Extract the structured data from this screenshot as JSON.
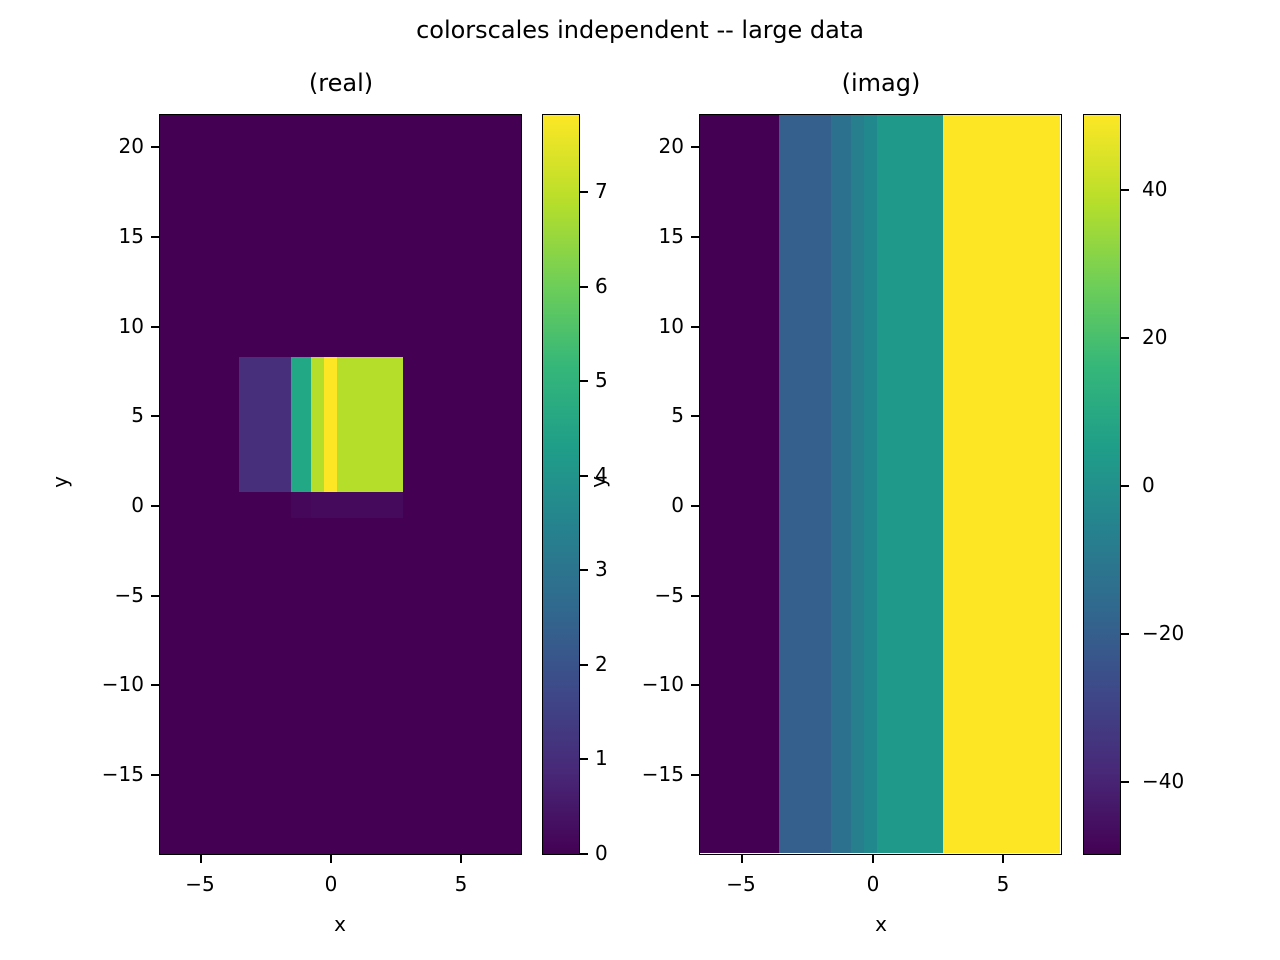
{
  "figure": {
    "title": "colorscales independent -- large data"
  },
  "colors": {
    "viridis_stops": [
      "#440154",
      "#482878",
      "#3e4989",
      "#31688e",
      "#26828e",
      "#1f9e89",
      "#35b779",
      "#6ece58",
      "#b5de2b",
      "#fde725"
    ]
  },
  "chart_data": [
    {
      "type": "heatmap",
      "title": "(real)",
      "xlabel": "x",
      "ylabel": "y",
      "xlim": [
        -6.6,
        7.3
      ],
      "ylim": [
        -19.4,
        21.8
      ],
      "xticks": [
        -5,
        0,
        5
      ],
      "xtick_labels": [
        "−5",
        "0",
        "5"
      ],
      "yticks": [
        20,
        15,
        10,
        5,
        0,
        -5,
        -10,
        -15
      ],
      "ytick_labels": [
        "20",
        "15",
        "10",
        "5",
        "0",
        "−5",
        "−10",
        "−15"
      ],
      "background_value": 0,
      "background_color": "#440154",
      "cells": [
        {
          "x0": -3.54,
          "x1": -1.54,
          "y0": 0.78,
          "y1": 8.3,
          "value": 0.9,
          "color": "#482f7b"
        },
        {
          "x0": -1.54,
          "x1": -0.77,
          "y0": 0.78,
          "y1": 8.3,
          "value": 4.8,
          "color": "#22a884"
        },
        {
          "x0": -0.77,
          "x1": -0.27,
          "y0": 0.78,
          "y1": 8.3,
          "value": 7.0,
          "color": "#b5de2b"
        },
        {
          "x0": -0.27,
          "x1": 0.23,
          "y0": 0.78,
          "y1": 8.3,
          "value": 7.6,
          "color": "#fde725"
        },
        {
          "x0": 0.23,
          "x1": 2.77,
          "y0": 0.78,
          "y1": 8.3,
          "value": 7.0,
          "color": "#b5de2b"
        },
        {
          "x0": -1.54,
          "x1": -0.77,
          "y0": -0.7,
          "y1": 0.78,
          "value": 0.05,
          "color": "#450759"
        },
        {
          "x0": -0.77,
          "x1": 2.77,
          "y0": -0.7,
          "y1": 0.78,
          "value": 0.1,
          "color": "#460a5d"
        }
      ],
      "colorbar": {
        "range": [
          0,
          7.7
        ],
        "ticks": [
          0,
          1,
          2,
          3,
          4,
          5,
          6,
          7
        ],
        "tick_labels": [
          "0",
          "1",
          "2",
          "3",
          "4",
          "5",
          "6",
          "7"
        ]
      }
    },
    {
      "type": "heatmap",
      "title": "(imag)",
      "xlabel": "x",
      "ylabel": "y",
      "xlim": [
        -6.6,
        7.3
      ],
      "ylim": [
        -19.4,
        21.8
      ],
      "xticks": [
        -5,
        0,
        5
      ],
      "xtick_labels": [
        "−5",
        "0",
        "5"
      ],
      "yticks": [
        20,
        15,
        10,
        5,
        0,
        -5,
        -10,
        -15
      ],
      "ytick_labels": [
        "20",
        "15",
        "10",
        "5",
        "0",
        "−5",
        "−10",
        "−15"
      ],
      "columns": [
        {
          "x0": -6.6,
          "x1": -3.54,
          "value": -50,
          "color": "#440154"
        },
        {
          "x0": -3.54,
          "x1": -1.54,
          "value": -22,
          "color": "#355f8d"
        },
        {
          "x0": -1.54,
          "x1": -0.77,
          "value": -8,
          "color": "#2c728e"
        },
        {
          "x0": -0.77,
          "x1": -0.27,
          "value": -3,
          "color": "#277f8e"
        },
        {
          "x0": -0.27,
          "x1": 0.23,
          "value": 0,
          "color": "#21898d"
        },
        {
          "x0": 0.23,
          "x1": 2.77,
          "value": 2,
          "color": "#1f9a8a"
        },
        {
          "x0": 2.77,
          "x1": 7.3,
          "value": 50,
          "color": "#fde725"
        }
      ],
      "colorbar": {
        "range": [
          -50,
          50
        ],
        "ticks": [
          40,
          20,
          0,
          -20,
          -40
        ],
        "tick_labels": [
          "40",
          "20",
          "0",
          "−20",
          "−40"
        ]
      }
    }
  ]
}
